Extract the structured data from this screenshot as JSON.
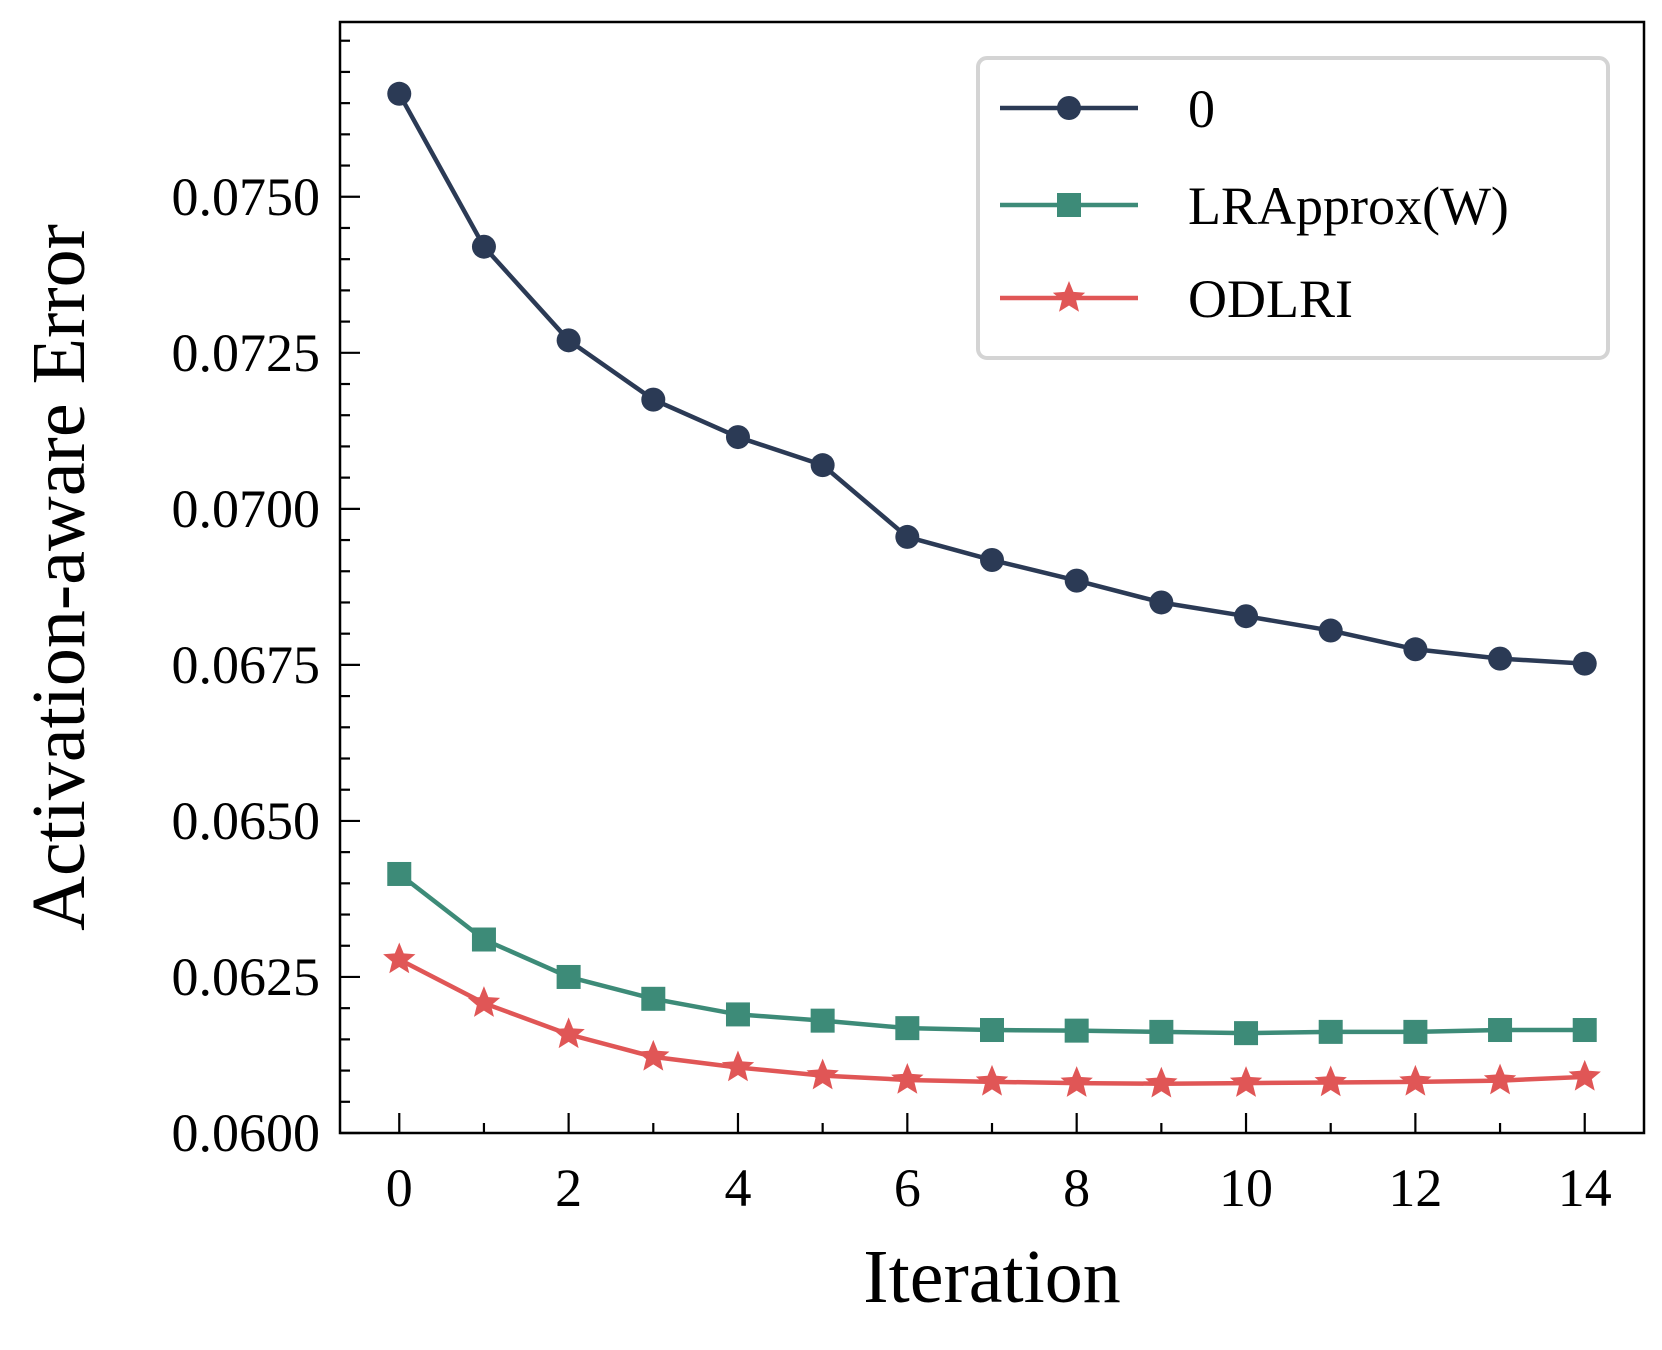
{
  "chart_data": {
    "type": "line",
    "title": "",
    "xlabel": "Iteration",
    "ylabel": "Activation-aware Error",
    "x": [
      0,
      1,
      2,
      3,
      4,
      5,
      6,
      7,
      8,
      9,
      10,
      11,
      12,
      13,
      14
    ],
    "xlim": [
      -0.7,
      14.7
    ],
    "ylim": [
      0.06,
      0.0778
    ],
    "x_ticks": [
      0,
      2,
      4,
      6,
      8,
      10,
      12,
      14
    ],
    "x_tick_labels": [
      "0",
      "2",
      "4",
      "6",
      "8",
      "10",
      "12",
      "14"
    ],
    "x_minor_ticks": [
      1,
      3,
      5,
      7,
      9,
      11,
      13
    ],
    "y_ticks": [
      0.06,
      0.0625,
      0.065,
      0.0675,
      0.07,
      0.0725,
      0.075
    ],
    "y_tick_labels": [
      "0.0600",
      "0.0625",
      "0.0650",
      "0.0675",
      "0.0700",
      "0.0725",
      "0.0750"
    ],
    "y_minor_step": 0.0005,
    "grid": false,
    "legend_position": "top-right",
    "series": [
      {
        "name": "0",
        "color": "#2b3a55",
        "marker": "circle",
        "values": [
          0.07665,
          0.0742,
          0.0727,
          0.07175,
          0.07115,
          0.0707,
          0.06955,
          0.06918,
          0.06885,
          0.0685,
          0.06828,
          0.06805,
          0.06775,
          0.0676,
          0.06752
        ]
      },
      {
        "name": "LRApprox(W)",
        "color": "#3d8b78",
        "marker": "square",
        "values": [
          0.06415,
          0.0631,
          0.0625,
          0.06215,
          0.0619,
          0.0618,
          0.06168,
          0.06165,
          0.06164,
          0.06162,
          0.0616,
          0.06162,
          0.06162,
          0.06165,
          0.06165
        ]
      },
      {
        "name": "ODLRI",
        "color": "#e05656",
        "marker": "star",
        "values": [
          0.06278,
          0.06208,
          0.06158,
          0.06122,
          0.06105,
          0.06092,
          0.06085,
          0.06082,
          0.0608,
          0.06079,
          0.0608,
          0.06081,
          0.06082,
          0.06084,
          0.0609
        ]
      }
    ]
  }
}
